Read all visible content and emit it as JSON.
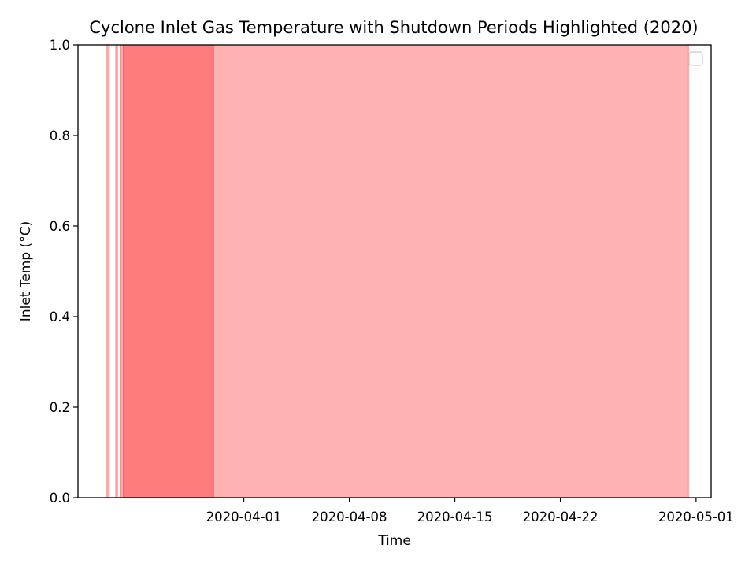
{
  "chart_data": {
    "type": "area",
    "title": "Cyclone Inlet Gas Temperature with Shutdown Periods Highlighted (2020)",
    "xlabel": "Time",
    "ylabel": "Inlet Temp (°C)",
    "xlim": [
      "2020-03-21T00:00",
      "2020-05-02T00:00"
    ],
    "ylim": [
      0.0,
      1.0
    ],
    "x_ticks": [
      {
        "value": "2020-04-01",
        "label": "2020-04-01"
      },
      {
        "value": "2020-04-08",
        "label": "2020-04-08"
      },
      {
        "value": "2020-04-15",
        "label": "2020-04-15"
      },
      {
        "value": "2020-04-22",
        "label": "2020-04-22"
      },
      {
        "value": "2020-05-01",
        "label": "2020-05-01"
      }
    ],
    "y_ticks": [
      {
        "value": 0.0,
        "label": "0.0"
      },
      {
        "value": 0.2,
        "label": "0.2"
      },
      {
        "value": 0.4,
        "label": "0.4"
      },
      {
        "value": 0.6,
        "label": "0.6"
      },
      {
        "value": 0.8,
        "label": "0.8"
      },
      {
        "value": 1.0,
        "label": "1.0"
      }
    ],
    "shutdown_periods": [
      {
        "start": "2020-03-22T22:00",
        "end": "2020-03-23T02:00"
      },
      {
        "start": "2020-03-23T12:00",
        "end": "2020-03-23T15:00"
      },
      {
        "start": "2020-03-23T20:00",
        "end": "2020-03-30T00:00"
      },
      {
        "start": "2020-03-24T00:00",
        "end": "2020-04-30T12:00"
      }
    ],
    "shade_color": "#ff0000",
    "shade_opacity": 0.3,
    "grid": false,
    "legend": {
      "placement": "top-right",
      "entries": []
    }
  }
}
